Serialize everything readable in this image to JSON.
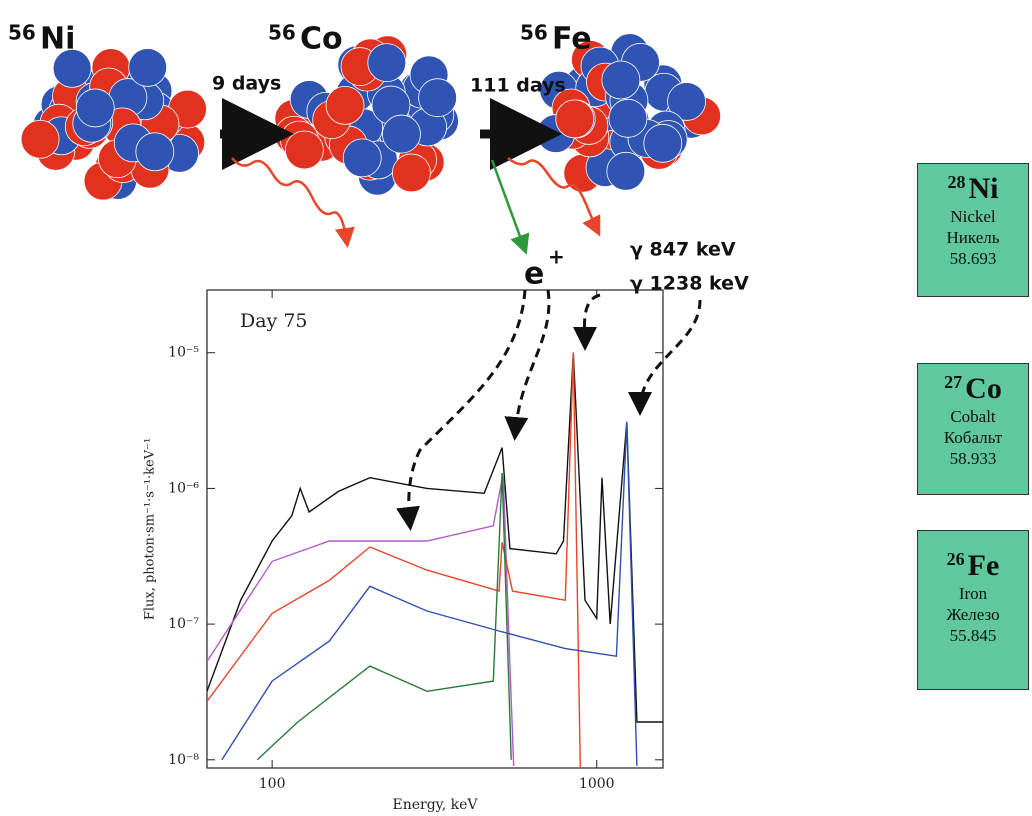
{
  "decay": {
    "nuclides": [
      {
        "mass": "56",
        "symbol": "Ni"
      },
      {
        "mass": "56",
        "symbol": "Co"
      },
      {
        "mass": "56",
        "symbol": "Fe"
      }
    ],
    "steps": [
      {
        "time": "9 days"
      },
      {
        "time": "111 days"
      }
    ],
    "positron": {
      "symbol": "e",
      "charge": "+"
    },
    "gamma_lines": [
      "γ 847 keV",
      "γ 1238 keV"
    ]
  },
  "elements": [
    {
      "number": "28",
      "symbol": "Ni",
      "name": "Nickel",
      "name_ru": "Никель",
      "mass": "58.693"
    },
    {
      "number": "27",
      "symbol": "Co",
      "name": "Cobalt",
      "name_ru": "Кобальт",
      "mass": "58.933"
    },
    {
      "number": "26",
      "symbol": "Fe",
      "name": "Iron",
      "name_ru": "Железо",
      "mass": "55.845"
    }
  ],
  "chart_data": {
    "type": "line",
    "annotation": "Day 75",
    "x_label": "Energy, keV",
    "y_label": "Flux, photon·sm⁻¹·s⁻¹·keV⁻¹",
    "xscale": "log",
    "yscale": "log",
    "xlim": [
      63,
      1600
    ],
    "ylim": [
      8.7e-09,
      2.9e-05
    ],
    "xticks": [
      100,
      1000
    ],
    "yticks": [
      {
        "value": 1e-08,
        "label": "10⁻⁸"
      },
      {
        "value": 1e-07,
        "label": "10⁻⁷"
      },
      {
        "value": 1e-06,
        "label": "10⁻⁶"
      },
      {
        "value": 1e-05,
        "label": "10⁻⁵"
      }
    ],
    "series": [
      {
        "color": "#111111",
        "x": [
          63,
          80,
          100,
          115,
          122,
          130,
          160,
          200,
          300,
          450,
          511,
          540,
          750,
          790,
          847,
          920,
          1000,
          1038,
          1100,
          1238,
          1330,
          1600
        ],
        "values": [
          3.2e-08,
          1.5e-07,
          4.1e-07,
          6.3e-07,
          1e-06,
          6.7e-07,
          9.5e-07,
          1.2e-06,
          1e-06,
          9.2e-07,
          2e-06,
          3.6e-07,
          3.3e-07,
          4.1e-07,
          1e-05,
          1.5e-07,
          1.1e-07,
          1.2e-06,
          1e-07,
          3.1e-06,
          1.9e-08,
          1.9e-08
        ]
      },
      {
        "color": "#b05cc8",
        "x": [
          63,
          100,
          150,
          300,
          480,
          515,
          540,
          555
        ],
        "values": [
          5.3e-08,
          2.9e-07,
          4.1e-07,
          4.1e-07,
          5.3e-07,
          1.3e-06,
          5e-08,
          9e-09
        ]
      },
      {
        "color": "#e8452a",
        "x": [
          63,
          100,
          150,
          200,
          300,
          500,
          511,
          550,
          800,
          847,
          890
        ],
        "values": [
          2.7e-08,
          1.2e-07,
          2.1e-07,
          3.7e-07,
          2.5e-07,
          1.75e-07,
          4e-07,
          1.75e-07,
          1.5e-07,
          1e-05,
          8.7e-09
        ]
      },
      {
        "color": "#3050b0",
        "x": [
          70,
          100,
          150,
          200,
          300,
          500,
          800,
          1150,
          1238,
          1330
        ],
        "values": [
          1e-08,
          3.8e-08,
          7.5e-08,
          1.9e-07,
          1.25e-07,
          8.9e-08,
          6.6e-08,
          5.8e-08,
          3.1e-06,
          9e-09
        ]
      },
      {
        "color": "#2a7a3a",
        "x": [
          90,
          120,
          200,
          300,
          480,
          511,
          545
        ],
        "values": [
          1e-08,
          1.9e-08,
          4.9e-08,
          3.2e-08,
          3.8e-08,
          1.3e-06,
          1e-08
        ]
      }
    ]
  }
}
